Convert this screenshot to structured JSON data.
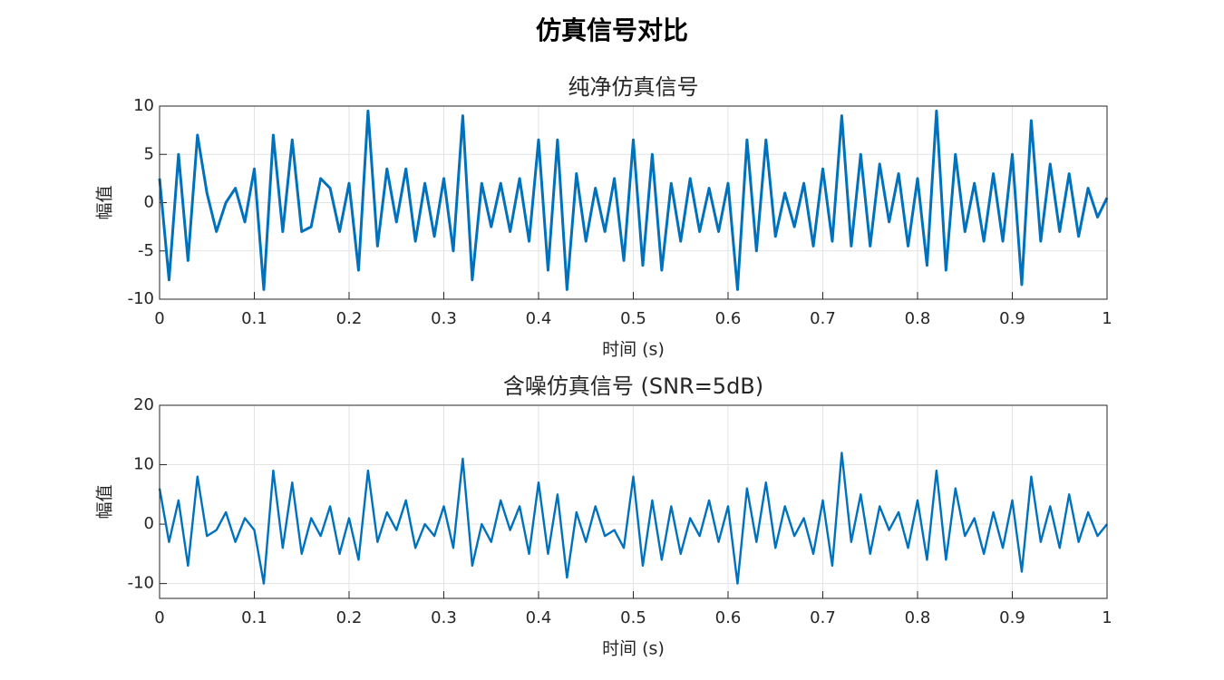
{
  "title": "仿真信号对比",
  "chart_data": [
    {
      "type": "line",
      "title": "纯净仿真信号",
      "xlabel": "时间 (s)",
      "ylabel": "幅值",
      "x": [
        0,
        0.01,
        0.02,
        0.03,
        0.04,
        0.05,
        0.06,
        0.07,
        0.08,
        0.09,
        0.1,
        0.11,
        0.12,
        0.13,
        0.14,
        0.15,
        0.16,
        0.17,
        0.18,
        0.19,
        0.2,
        0.21,
        0.22,
        0.23,
        0.24,
        0.25,
        0.26,
        0.27,
        0.28,
        0.29,
        0.3,
        0.31,
        0.32,
        0.33,
        0.34,
        0.35,
        0.36,
        0.37,
        0.38,
        0.39,
        0.4,
        0.41,
        0.42,
        0.43,
        0.44,
        0.45,
        0.46,
        0.47,
        0.48,
        0.49,
        0.5,
        0.51,
        0.52,
        0.53,
        0.54,
        0.55,
        0.56,
        0.57,
        0.58,
        0.59,
        0.6,
        0.61,
        0.62,
        0.63,
        0.64,
        0.65,
        0.66,
        0.67,
        0.68,
        0.69,
        0.7,
        0.71,
        0.72,
        0.73,
        0.74,
        0.75,
        0.76,
        0.77,
        0.78,
        0.79,
        0.8,
        0.81,
        0.82,
        0.83,
        0.84,
        0.85,
        0.86,
        0.87,
        0.88,
        0.89,
        0.9,
        0.91,
        0.92,
        0.93,
        0.94,
        0.95,
        0.96,
        0.97,
        0.98,
        0.99,
        1
      ],
      "series": [
        {
          "color": "#0072bd",
          "values": [
            2.5,
            -8,
            5,
            -6,
            7,
            1,
            -3,
            0,
            1.5,
            -2,
            3.5,
            -9,
            7,
            -3,
            6.5,
            -3,
            -2.5,
            2.5,
            1.5,
            -3,
            2,
            -7,
            9.5,
            -4.5,
            3.5,
            -2,
            3.5,
            -4,
            2,
            -3.5,
            2.5,
            -5,
            9,
            -8,
            2,
            -2.5,
            2,
            -3,
            2.5,
            -4,
            6.5,
            -7,
            6.5,
            -9,
            3,
            -4,
            1.5,
            -3,
            2.5,
            -6,
            6.5,
            -6.5,
            5,
            -7,
            2,
            -4,
            2.5,
            -3,
            1.5,
            -3,
            2,
            -9,
            6.5,
            -5,
            6.5,
            -3.5,
            1,
            -2.5,
            2,
            -4.5,
            3.5,
            -4,
            9,
            -4.5,
            5,
            -4.5,
            4,
            -2,
            3,
            -4.5,
            2.5,
            -6.5,
            9.5,
            -7,
            5,
            -3,
            2,
            -4,
            3,
            -4,
            5,
            -8.5,
            8.5,
            -4,
            4,
            -3,
            3,
            -3.5,
            1.5,
            -1.5,
            0.5
          ]
        }
      ],
      "xlim": [
        0,
        1
      ],
      "xticks": [
        0,
        0.1,
        0.2,
        0.3,
        0.4,
        0.5,
        0.6,
        0.7,
        0.8,
        0.9,
        1
      ],
      "ylim": [
        -10,
        10
      ],
      "yticks": [
        -10,
        -5,
        0,
        5,
        10
      ],
      "grid": true
    },
    {
      "type": "line",
      "title": "含噪仿真信号 (SNR=5dB)",
      "xlabel": "时间 (s)",
      "ylabel": "幅值",
      "x": [
        0,
        0.01,
        0.02,
        0.03,
        0.04,
        0.05,
        0.06,
        0.07,
        0.08,
        0.09,
        0.1,
        0.11,
        0.12,
        0.13,
        0.14,
        0.15,
        0.16,
        0.17,
        0.18,
        0.19,
        0.2,
        0.21,
        0.22,
        0.23,
        0.24,
        0.25,
        0.26,
        0.27,
        0.28,
        0.29,
        0.3,
        0.31,
        0.32,
        0.33,
        0.34,
        0.35,
        0.36,
        0.37,
        0.38,
        0.39,
        0.4,
        0.41,
        0.42,
        0.43,
        0.44,
        0.45,
        0.46,
        0.47,
        0.48,
        0.49,
        0.5,
        0.51,
        0.52,
        0.53,
        0.54,
        0.55,
        0.56,
        0.57,
        0.58,
        0.59,
        0.6,
        0.61,
        0.62,
        0.63,
        0.64,
        0.65,
        0.66,
        0.67,
        0.68,
        0.69,
        0.7,
        0.71,
        0.72,
        0.73,
        0.74,
        0.75,
        0.76,
        0.77,
        0.78,
        0.79,
        0.8,
        0.81,
        0.82,
        0.83,
        0.84,
        0.85,
        0.86,
        0.87,
        0.88,
        0.89,
        0.9,
        0.91,
        0.92,
        0.93,
        0.94,
        0.95,
        0.96,
        0.97,
        0.98,
        0.99,
        1
      ],
      "series": [
        {
          "color": "#0072bd",
          "values": [
            6,
            -3,
            4,
            -7,
            8,
            -2,
            -1,
            2,
            -3,
            1,
            -1,
            -10,
            9,
            -4,
            7,
            -5,
            1,
            -2,
            3,
            -5,
            1,
            -6,
            9,
            -3,
            2,
            -1,
            4,
            -4,
            0,
            -2,
            3,
            -4,
            11,
            -7,
            0,
            -3,
            4,
            -1,
            3,
            -5,
            7,
            -5,
            5,
            -9,
            2,
            -3,
            3,
            -2,
            -1,
            -4,
            8,
            -7,
            4,
            -6,
            3,
            -5,
            1,
            -2,
            4,
            -3,
            3,
            -10,
            6,
            -3,
            7,
            -4,
            3,
            -2,
            1,
            -5,
            4,
            -7,
            12,
            -3,
            5,
            -5,
            3,
            -1,
            2,
            -4,
            4,
            -6,
            9,
            -6,
            6,
            -2,
            1,
            -5,
            2,
            -4,
            4,
            -8,
            8,
            -3,
            3,
            -4,
            5,
            -3,
            2,
            -2,
            0
          ]
        }
      ],
      "xlim": [
        0,
        1
      ],
      "xticks": [
        0,
        0.1,
        0.2,
        0.3,
        0.4,
        0.5,
        0.6,
        0.7,
        0.8,
        0.9,
        1
      ],
      "ylim": [
        -12.5,
        20
      ],
      "yticks": [
        -10,
        0,
        10,
        20
      ],
      "grid": true
    }
  ]
}
